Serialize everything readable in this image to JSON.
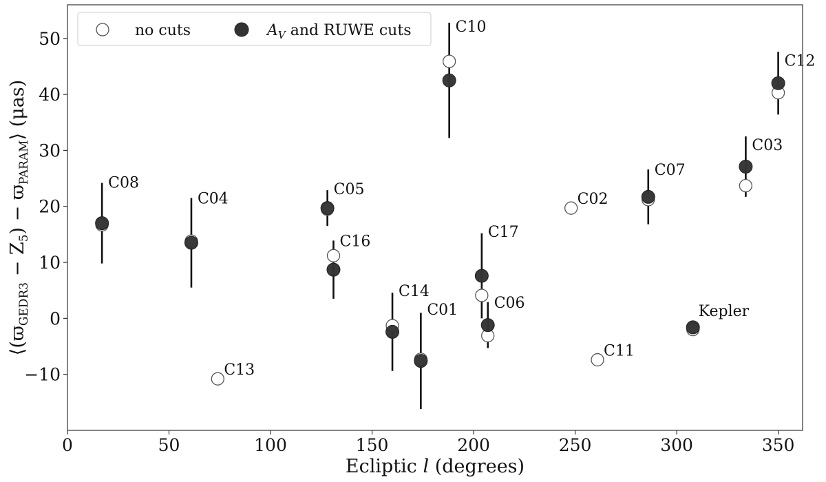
{
  "chart_data": {
    "type": "scatter",
    "xlabel": "Ecliptic l (degrees)",
    "ylabel": "⟨(ϖGEDR3 − Z5) − ϖPARAM⟩ (μas)",
    "xlim": [
      0,
      362
    ],
    "ylim": [
      -20,
      56
    ],
    "xticks": [
      0,
      50,
      100,
      150,
      200,
      250,
      300,
      350
    ],
    "yticks": [
      -10,
      0,
      10,
      20,
      30,
      40,
      50
    ],
    "grid": false,
    "legend_position": "top-left",
    "series": [
      {
        "name": "no cuts",
        "marker": "open-circle",
        "color": "#555555",
        "points": [
          {
            "label": "C08",
            "x": 17,
            "y": 16.7
          },
          {
            "label": "C04",
            "x": 61,
            "y": 13.8
          },
          {
            "label": "C13",
            "x": 74,
            "y": -10.8
          },
          {
            "label": "C05",
            "x": 128,
            "y": 19.5
          },
          {
            "label": "C16",
            "x": 131,
            "y": 11.2
          },
          {
            "label": "C14",
            "x": 160,
            "y": -1.3
          },
          {
            "label": "C01",
            "x": 174,
            "y": -7.3
          },
          {
            "label": "C10",
            "x": 188,
            "y": 45.9
          },
          {
            "label": "C17",
            "x": 204,
            "y": 4.1
          },
          {
            "label": "C06",
            "x": 207,
            "y": -3.1
          },
          {
            "label": "C02",
            "x": 248,
            "y": 19.7
          },
          {
            "label": "C11",
            "x": 261,
            "y": -7.4
          },
          {
            "label": "C07",
            "x": 286,
            "y": 21.2
          },
          {
            "label": "Kepler",
            "x": 308,
            "y": -2.0
          },
          {
            "label": "C03",
            "x": 334,
            "y": 23.7
          },
          {
            "label": "C12",
            "x": 350,
            "y": 40.3
          }
        ]
      },
      {
        "name": "A_V and RUWE cuts",
        "marker": "filled-circle",
        "color": "#333333",
        "points": [
          {
            "label": "C08",
            "x": 17,
            "y": 17.0,
            "err": 7.2
          },
          {
            "label": "C04",
            "x": 61,
            "y": 13.5,
            "err": 8.0
          },
          {
            "label": "C05",
            "x": 128,
            "y": 19.7,
            "err": 3.2
          },
          {
            "label": "C16",
            "x": 131,
            "y": 8.7,
            "err": 5.2
          },
          {
            "label": "C14",
            "x": 160,
            "y": -2.4,
            "err": 7.0
          },
          {
            "label": "C01",
            "x": 174,
            "y": -7.6,
            "err": 8.6
          },
          {
            "label": "C10",
            "x": 188,
            "y": 42.5,
            "err": 10.3
          },
          {
            "label": "C17",
            "x": 204,
            "y": 7.6,
            "err": 7.6
          },
          {
            "label": "C06",
            "x": 207,
            "y": -1.2,
            "err": 4.1
          },
          {
            "label": "C07",
            "x": 286,
            "y": 21.7,
            "err": 4.9
          },
          {
            "label": "Kepler",
            "x": 308,
            "y": -1.6,
            "err": 0.8
          },
          {
            "label": "C03",
            "x": 334,
            "y": 27.1,
            "err": 5.4
          },
          {
            "label": "C12",
            "x": 350,
            "y": 42.0,
            "err": 5.6
          }
        ]
      }
    ],
    "annotations": [
      {
        "text": "C08",
        "x": 17
      },
      {
        "text": "C04",
        "x": 61
      },
      {
        "text": "C13",
        "x": 74
      },
      {
        "text": "C05",
        "x": 128
      },
      {
        "text": "C16",
        "x": 131
      },
      {
        "text": "C14",
        "x": 160
      },
      {
        "text": "C01",
        "x": 174
      },
      {
        "text": "C10",
        "x": 188
      },
      {
        "text": "C17",
        "x": 204
      },
      {
        "text": "C06",
        "x": 207
      },
      {
        "text": "C02",
        "x": 248
      },
      {
        "text": "C11",
        "x": 261
      },
      {
        "text": "C07",
        "x": 286
      },
      {
        "text": "Kepler",
        "x": 308
      },
      {
        "text": "C03",
        "x": 334
      },
      {
        "text": "C12",
        "x": 350
      }
    ]
  }
}
